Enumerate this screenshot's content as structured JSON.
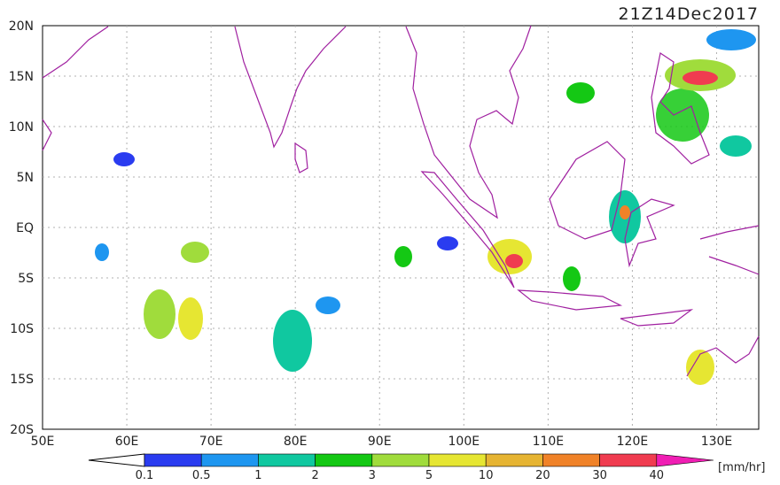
{
  "title": "21Z14Dec2017",
  "lat_labels": [
    "20N",
    "15N",
    "10N",
    "5N",
    "EQ",
    "5S",
    "10S",
    "15S",
    "20S"
  ],
  "lon_labels": [
    "50E",
    "60E",
    "70E",
    "80E",
    "90E",
    "100E",
    "110E",
    "120E",
    "130E"
  ],
  "colorbar": {
    "labels": [
      "0.1",
      "0.5",
      "1",
      "2",
      "3",
      "5",
      "10",
      "20",
      "30",
      "40"
    ],
    "colors": [
      "#2a3cf0",
      "#1e96f0",
      "#10c8a0",
      "#14c814",
      "#a0dc3c",
      "#e6e632",
      "#e6b432",
      "#f08228",
      "#f03c50",
      "#f01eb4"
    ],
    "unit": "[mm/hr]"
  }
}
